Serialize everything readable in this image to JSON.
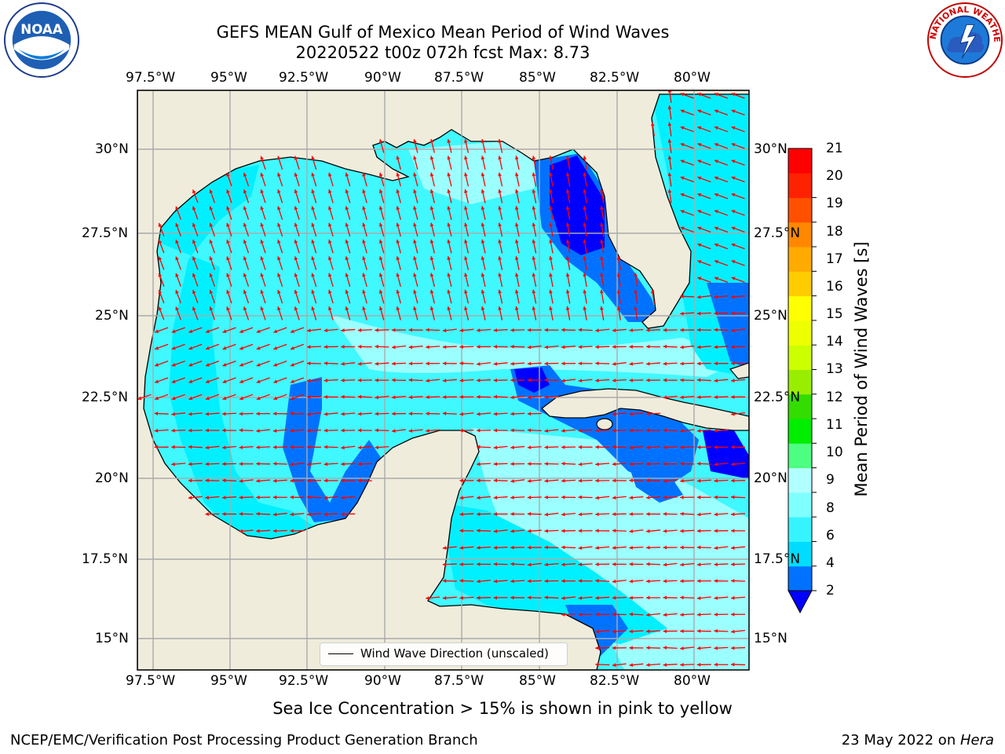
{
  "title_line1": "GEFS MEAN Gulf of Mexico Mean Period of Wind Waves",
  "title_line2": "20220522 t00z 072h fcst   Max: 8.73",
  "logos": {
    "left_text": "NOAA",
    "right_text": "NATIONAL WEATHER SERVICE"
  },
  "lon_labels": [
    "97.5°W",
    "95°W",
    "92.5°W",
    "90°W",
    "87.5°W",
    "85°W",
    "82.5°W",
    "80°W"
  ],
  "lat_labels": [
    "30°N",
    "27.5°N",
    "25°N",
    "22.5°N",
    "20°N",
    "17.5°N",
    "15°N"
  ],
  "colorbar": {
    "label": "Mean Period of Wind Waves [s]",
    "ticks": [
      "2",
      "4",
      "6",
      "8",
      "9",
      "10",
      "11",
      "12",
      "13",
      "14",
      "15",
      "16",
      "17",
      "18",
      "19",
      "20",
      "21"
    ],
    "colors": [
      "#0072ff",
      "#00dcff",
      "#36f4ff",
      "#80ffff",
      "#b2ffff",
      "#4dff80",
      "#00ee00",
      "#33dd00",
      "#99ee00",
      "#ccff00",
      "#eeff00",
      "#ffff00",
      "#ffcc00",
      "#ffaa00",
      "#ff8800",
      "#ff5000",
      "#ff2200",
      "#ff0000"
    ],
    "under_color": "#0000ff"
  },
  "legend_label": "Wind Wave Direction (unscaled)",
  "sea_ice_note": "Sea Ice Concentration > 15% is shown in pink to yellow",
  "footer_left": "NCEP/EMC/Verification Post Processing Product Generation Branch",
  "footer_date": "23 May 2022 on ",
  "footer_machine": "Hera",
  "map_colors": {
    "land": "#efecdc",
    "period_2_4": "#0072ff",
    "period_4_6": "#00f0ff",
    "period_6_8": "#40f8ff",
    "period_8_9": "#9cffff",
    "period_below_2": "#0000ff",
    "arrow": "#ff0000"
  }
}
